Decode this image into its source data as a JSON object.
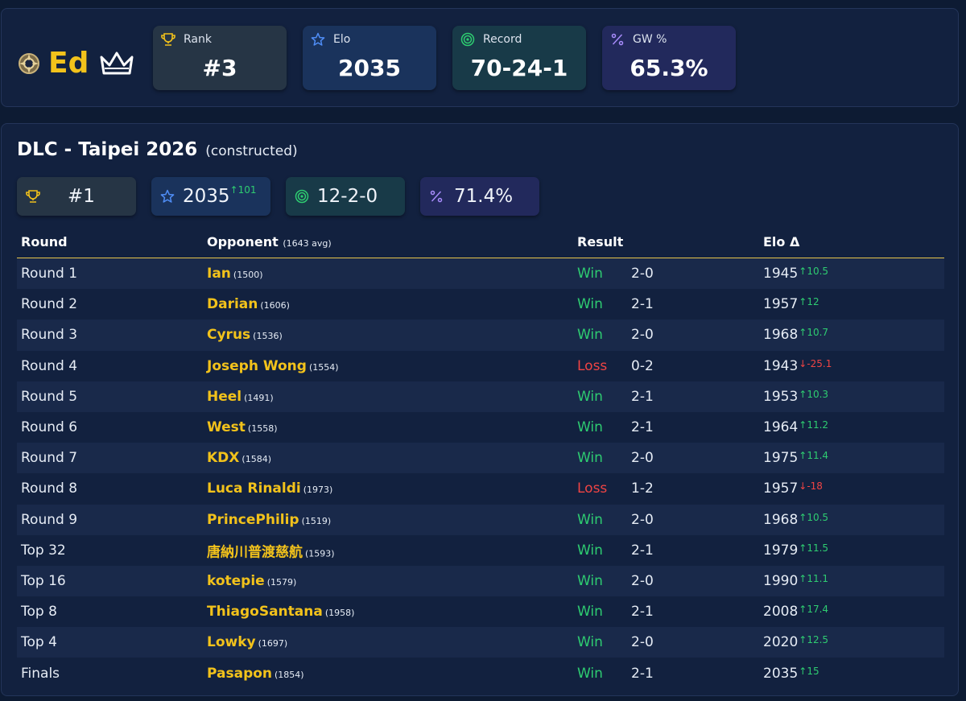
{
  "player": {
    "name": "Ed"
  },
  "stats": [
    {
      "label": "Rank",
      "value": "#3",
      "icon": "trophy-icon",
      "color": "#f2c21b",
      "bg": "#263545"
    },
    {
      "label": "Elo",
      "value": "2035",
      "icon": "star-icon",
      "color": "#4f8df5",
      "bg": "#1a335c"
    },
    {
      "label": "Record",
      "value": "70-24-1",
      "icon": "target-icon",
      "color": "#2ecc71",
      "bg": "#183a48"
    },
    {
      "label": "GW %",
      "value": "65.3%",
      "icon": "percent-icon",
      "color": "#a78bfa",
      "bg": "#22295c"
    }
  ],
  "event": {
    "name": "DLC - Taipei 2026",
    "format": "(constructed)",
    "rank": "#1",
    "elo": "2035",
    "elo_delta": "↑101",
    "record": "12-2-0",
    "gw": "71.4%"
  },
  "table": {
    "headers": {
      "round": "Round",
      "opponent": "Opponent",
      "opponent_avg": "(1643 avg)",
      "result": "Result",
      "elo": "Elo Δ"
    },
    "rows": [
      {
        "round": "Round 1",
        "opponent": "Ian",
        "opp_elo": "(1500)",
        "result": "Win",
        "score": "2-0",
        "elo": "1945",
        "delta": "↑10.5",
        "dir": "up"
      },
      {
        "round": "Round 2",
        "opponent": "Darian",
        "opp_elo": "(1606)",
        "result": "Win",
        "score": "2-1",
        "elo": "1957",
        "delta": "↑12",
        "dir": "up"
      },
      {
        "round": "Round 3",
        "opponent": "Cyrus",
        "opp_elo": "(1536)",
        "result": "Win",
        "score": "2-0",
        "elo": "1968",
        "delta": "↑10.7",
        "dir": "up"
      },
      {
        "round": "Round 4",
        "opponent": "Joseph Wong",
        "opp_elo": "(1554)",
        "result": "Loss",
        "score": "0-2",
        "elo": "1943",
        "delta": "↓-25.1",
        "dir": "down"
      },
      {
        "round": "Round 5",
        "opponent": "Heel",
        "opp_elo": "(1491)",
        "result": "Win",
        "score": "2-1",
        "elo": "1953",
        "delta": "↑10.3",
        "dir": "up"
      },
      {
        "round": "Round 6",
        "opponent": "West",
        "opp_elo": "(1558)",
        "result": "Win",
        "score": "2-1",
        "elo": "1964",
        "delta": "↑11.2",
        "dir": "up"
      },
      {
        "round": "Round 7",
        "opponent": "KDX",
        "opp_elo": "(1584)",
        "result": "Win",
        "score": "2-0",
        "elo": "1975",
        "delta": "↑11.4",
        "dir": "up"
      },
      {
        "round": "Round 8",
        "opponent": "Luca Rinaldi",
        "opp_elo": "(1973)",
        "result": "Loss",
        "score": "1-2",
        "elo": "1957",
        "delta": "↓-18",
        "dir": "down"
      },
      {
        "round": "Round 9",
        "opponent": "PrincePhilip",
        "opp_elo": "(1519)",
        "result": "Win",
        "score": "2-0",
        "elo": "1968",
        "delta": "↑10.5",
        "dir": "up"
      },
      {
        "round": "Top 32",
        "opponent": "唐納川普渡慈航",
        "opp_elo": "(1593)",
        "result": "Win",
        "score": "2-1",
        "elo": "1979",
        "delta": "↑11.5",
        "dir": "up"
      },
      {
        "round": "Top 16",
        "opponent": "kotepie",
        "opp_elo": "(1579)",
        "result": "Win",
        "score": "2-0",
        "elo": "1990",
        "delta": "↑11.1",
        "dir": "up"
      },
      {
        "round": "Top 8",
        "opponent": "ThiagoSantana",
        "opp_elo": "(1958)",
        "result": "Win",
        "score": "2-1",
        "elo": "2008",
        "delta": "↑17.4",
        "dir": "up"
      },
      {
        "round": "Top 4",
        "opponent": "Lowky",
        "opp_elo": "(1697)",
        "result": "Win",
        "score": "2-0",
        "elo": "2020",
        "delta": "↑12.5",
        "dir": "up"
      },
      {
        "round": "Finals",
        "opponent": "Pasapon",
        "opp_elo": "(1854)",
        "result": "Win",
        "score": "2-1",
        "elo": "2035",
        "delta": "↑15",
        "dir": "up"
      }
    ]
  }
}
